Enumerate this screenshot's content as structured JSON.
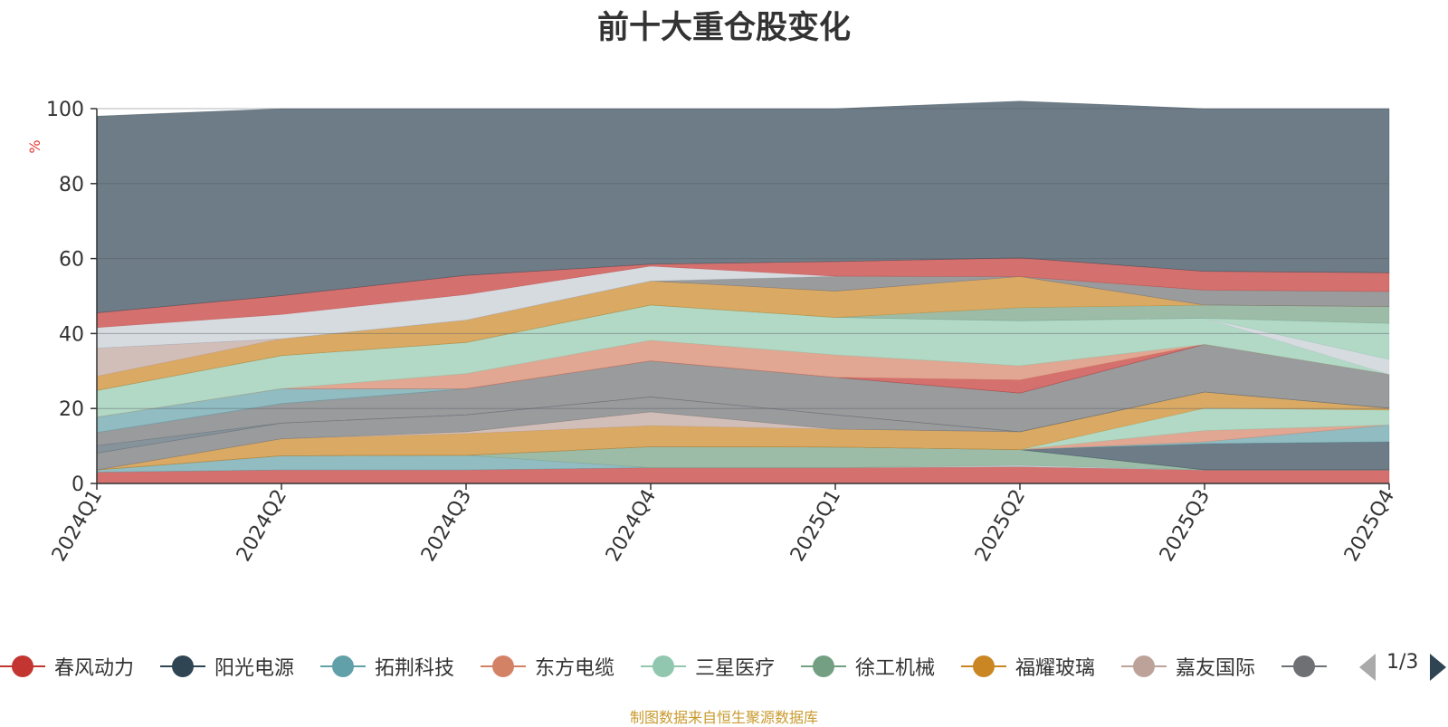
{
  "title": "前十大重仓股变化",
  "footer": "制图数据来自恒生聚源数据库",
  "pager": {
    "label": "1/3"
  },
  "chart_data": {
    "type": "area",
    "stacked": true,
    "x": [
      "2024Q1",
      "2024Q2",
      "2024Q3",
      "2024Q4",
      "2025Q1",
      "2025Q2",
      "2025Q3",
      "2025Q4"
    ],
    "ylabel": "%",
    "ylim": [
      0,
      100
    ],
    "yticks": [
      0,
      20,
      40,
      60,
      80,
      100
    ],
    "series": [
      {
        "name": "春风动力",
        "color": "#c23531",
        "values": [
          3.0,
          3.6,
          3.6,
          4.2,
          4.2,
          4.5,
          3.6,
          3.6
        ]
      },
      {
        "name": "",
        "color": "#61a0a8",
        "values": [
          0.6,
          3.8,
          3.9,
          0,
          0,
          0,
          0,
          0
        ]
      },
      {
        "name": "",
        "color": "#c4ccd3",
        "values": [
          0,
          0,
          0,
          0,
          0,
          0.3,
          0,
          0
        ]
      },
      {
        "name": "",
        "color": "#749f83",
        "values": [
          0,
          0,
          0,
          5.6,
          5.5,
          4.2,
          0,
          0
        ]
      },
      {
        "name": "",
        "color": "#2f4554",
        "values": [
          0,
          0,
          0,
          0,
          0,
          0,
          7.0,
          7.5
        ]
      },
      {
        "name": "",
        "color": "#61a0a8",
        "values": [
          0,
          0,
          0,
          0,
          0,
          0,
          0.5,
          4.5
        ]
      },
      {
        "name": "",
        "color": "#d48265",
        "values": [
          0,
          0,
          0,
          0,
          0,
          0,
          3.0,
          0
        ]
      },
      {
        "name": "",
        "color": "#91c7ae",
        "values": [
          0,
          0,
          0,
          0,
          0,
          0,
          6.0,
          4.0
        ]
      },
      {
        "name": "",
        "color": "#ca8622",
        "values": [
          0,
          4.5,
          5.8,
          5.6,
          4.8,
          4.8,
          4.3,
          0.5
        ]
      },
      {
        "name": "",
        "color": "#bda29a",
        "values": [
          0,
          0,
          0.5,
          3.7,
          0,
          0,
          0,
          0
        ]
      },
      {
        "name": "",
        "color": "#6e7074",
        "values": [
          4.5,
          4.2,
          4.5,
          4.0,
          3.8,
          0,
          0,
          0
        ]
      },
      {
        "name": "",
        "color": "#546570",
        "values": [
          2.0,
          0,
          0,
          0,
          0,
          0,
          0,
          0
        ]
      },
      {
        "name": "",
        "color": "#6e7074",
        "values": [
          3.5,
          5.2,
          7.0,
          9.6,
          10.0,
          10.3,
          12.7,
          9.0
        ]
      },
      {
        "name": "",
        "color": "#61a0a8",
        "values": [
          4.1,
          4.0,
          0,
          0,
          0,
          0,
          0,
          0
        ]
      },
      {
        "name": "",
        "color": "#c23531",
        "values": [
          0,
          0,
          0,
          0,
          0,
          3.5,
          0,
          0
        ]
      },
      {
        "name": "",
        "color": "#d48265",
        "values": [
          0,
          0,
          4.0,
          5.5,
          6.0,
          3.8,
          0,
          0
        ]
      },
      {
        "name": "",
        "color": "#91c7ae",
        "values": [
          7.1,
          8.8,
          8.3,
          9.4,
          10.0,
          12.0,
          7.0,
          0
        ]
      },
      {
        "name": "",
        "color": "#c4ccd3",
        "values": [
          0,
          0,
          0,
          0,
          0,
          0,
          0,
          4.0
        ]
      },
      {
        "name": "",
        "color": "#91c7ae",
        "values": [
          0,
          0,
          0,
          0,
          0,
          0,
          0,
          9.6
        ]
      },
      {
        "name": "",
        "color": "#749f83",
        "values": [
          0,
          0,
          0,
          0,
          0,
          3.5,
          3.5,
          4.5
        ]
      },
      {
        "name": "",
        "color": "#ca8622",
        "values": [
          3.8,
          4.5,
          6.0,
          6.4,
          7.0,
          8.3,
          0,
          0
        ]
      },
      {
        "name": "",
        "color": "#bda29a",
        "values": [
          7.5,
          0,
          0,
          0,
          0,
          0,
          0,
          0
        ]
      },
      {
        "name": "",
        "color": "#6e7074",
        "values": [
          0,
          0,
          0,
          0,
          4.0,
          0,
          4.0,
          4.0
        ]
      },
      {
        "name": "",
        "color": "#c4ccd3",
        "values": [
          5.5,
          6.5,
          6.8,
          4.0,
          0,
          0,
          0,
          0
        ]
      },
      {
        "name": "",
        "color": "#c23531",
        "values": [
          3.9,
          5.0,
          5.1,
          0.5,
          3.9,
          5.0,
          5.0,
          5.0
        ]
      },
      {
        "name": "",
        "color": "#2f4554",
        "values": [
          52.5,
          49.9,
          44.5,
          41.5,
          40.8,
          41.8,
          43.4,
          43.8
        ]
      }
    ],
    "legend": [
      {
        "label": "春风动力",
        "color": "#c23531"
      },
      {
        "label": "阳光电源",
        "color": "#2f4554"
      },
      {
        "label": "拓荆科技",
        "color": "#61a0a8"
      },
      {
        "label": "东方电缆",
        "color": "#d48265"
      },
      {
        "label": "三星医疗",
        "color": "#91c7ae"
      },
      {
        "label": "徐工机械",
        "color": "#749f83"
      },
      {
        "label": "福耀玻璃",
        "color": "#ca8622"
      },
      {
        "label": "嘉友国际",
        "color": "#bda29a"
      },
      {
        "label": "",
        "color": "#6e7074"
      }
    ],
    "legend_position": "bottom",
    "grid": true
  }
}
